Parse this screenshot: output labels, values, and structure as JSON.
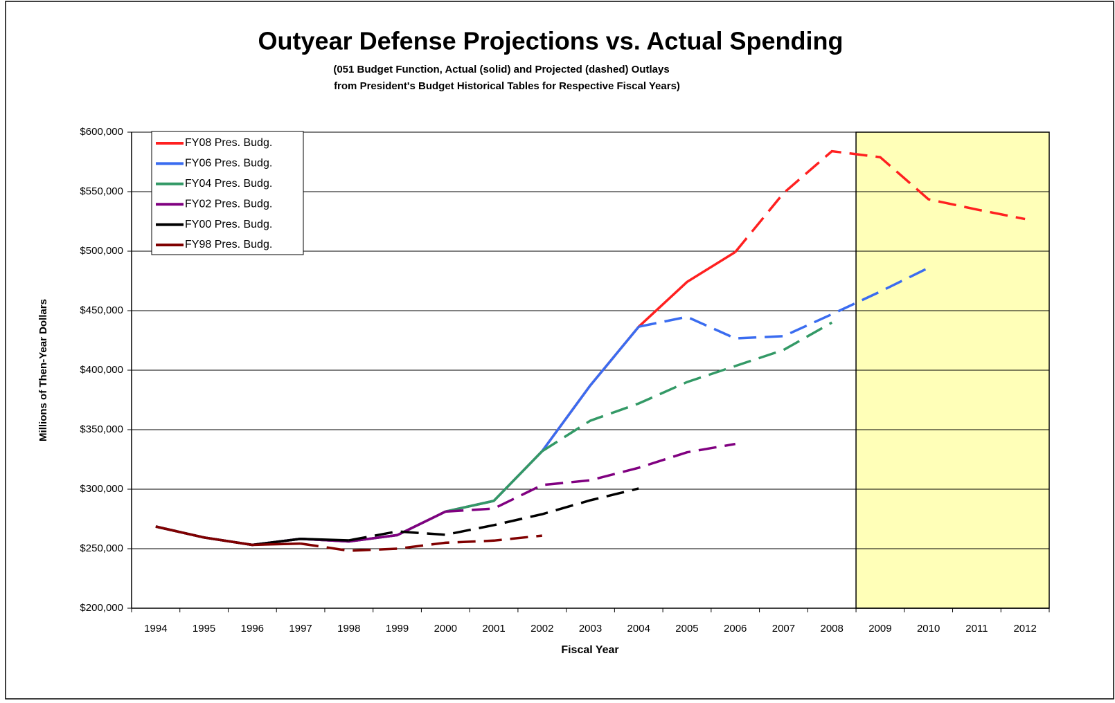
{
  "chart_data": {
    "type": "line",
    "title": "Outyear Defense Projections vs. Actual Spending",
    "subtitle": [
      "(051 Budget Function, Actual (solid) and Projected (dashed) Outlays",
      "from President's Budget Historical Tables for Respective Fiscal Years)"
    ],
    "x_label": "Fiscal Year",
    "y_label": "Millions of Then-Year Dollars",
    "categories": [
      "1994",
      "1995",
      "1996",
      "1997",
      "1998",
      "1999",
      "2000",
      "2001",
      "2002",
      "2003",
      "2004",
      "2005",
      "2006",
      "2007",
      "2008",
      "2009",
      "2010",
      "2011",
      "2012"
    ],
    "series": [
      {
        "name": "FY08 Pres. Budg.",
        "color": "#ff2020",
        "values": [
          268600,
          259400,
          253200,
          258300,
          256100,
          261400,
          281200,
          290200,
          331900,
          387300,
          436500,
          474100,
          499300,
          null,
          null,
          null,
          null,
          null,
          null
        ],
        "projected": [
          null,
          null,
          null,
          null,
          null,
          null,
          null,
          null,
          null,
          null,
          null,
          null,
          499300,
          548800,
          584000,
          579000,
          543600,
          535000,
          527000
        ]
      },
      {
        "name": "FY06 Pres. Budg.",
        "color": "#3a6cf0",
        "values": [
          268600,
          259400,
          253200,
          258300,
          256100,
          261400,
          281200,
          290200,
          331900,
          387300,
          436500,
          null,
          null,
          null,
          null,
          null,
          null,
          null,
          null
        ],
        "projected": [
          null,
          null,
          null,
          null,
          null,
          null,
          null,
          null,
          null,
          null,
          436500,
          444800,
          426700,
          428600,
          447000,
          466000,
          486000,
          null,
          null
        ]
      },
      {
        "name": "FY04 Pres. Budg.",
        "color": "#339966",
        "values": [
          268600,
          259400,
          253200,
          258300,
          256100,
          261400,
          281200,
          290200,
          331900,
          null,
          null,
          null,
          null,
          null,
          null,
          null,
          null,
          null,
          null
        ],
        "projected": [
          null,
          null,
          null,
          null,
          null,
          null,
          null,
          null,
          331900,
          357600,
          372000,
          390000,
          403500,
          417000,
          440000,
          null,
          null,
          null,
          null
        ]
      },
      {
        "name": "FY02 Pres. Budg.",
        "color": "#800080",
        "values": [
          268600,
          259400,
          253200,
          258300,
          256100,
          261400,
          281200,
          null,
          null,
          null,
          null,
          null,
          null,
          null,
          null,
          null,
          null,
          null,
          null
        ],
        "projected": [
          null,
          null,
          null,
          null,
          null,
          null,
          281200,
          283700,
          303500,
          307500,
          318000,
          331000,
          338000,
          null,
          null,
          null,
          null,
          null,
          null
        ]
      },
      {
        "name": "FY00 Pres. Budg.",
        "color": "#000000",
        "values": [
          268600,
          259400,
          253200,
          258300,
          257000,
          null,
          null,
          null,
          null,
          null,
          null,
          null,
          null,
          null,
          null,
          null,
          null,
          null,
          null
        ],
        "projected": [
          null,
          null,
          null,
          null,
          257000,
          264500,
          261700,
          269800,
          279000,
          290700,
          300600,
          null,
          null,
          null,
          null,
          null,
          null,
          null,
          null
        ]
      },
      {
        "name": "FY98 Pres. Budg.",
        "color": "#800000",
        "values": [
          268600,
          259400,
          253200,
          254300,
          null,
          null,
          null,
          null,
          null,
          null,
          null,
          null,
          null,
          null,
          null,
          null,
          null,
          null,
          null
        ],
        "projected": [
          null,
          null,
          null,
          254300,
          248300,
          250000,
          255000,
          256800,
          261000,
          null,
          null,
          null,
          null,
          null,
          null,
          null,
          null,
          null,
          null
        ]
      }
    ],
    "ylim": [
      200000,
      600000
    ],
    "yticks": [
      {
        "value": 200000,
        "label": "$200,000"
      },
      {
        "value": 250000,
        "label": "$250,000"
      },
      {
        "value": 300000,
        "label": "$300,000"
      },
      {
        "value": 350000,
        "label": "$350,000"
      },
      {
        "value": 400000,
        "label": "$400,000"
      },
      {
        "value": 450000,
        "label": "$450,000"
      },
      {
        "value": 500000,
        "label": "$500,000"
      },
      {
        "value": 550000,
        "label": "$550,000"
      },
      {
        "value": 600000,
        "label": "$600,000"
      }
    ],
    "grid": true,
    "legend": "upper-left",
    "highlight": {
      "from": "2009",
      "to": "2012",
      "color": "#ffffb8"
    }
  }
}
